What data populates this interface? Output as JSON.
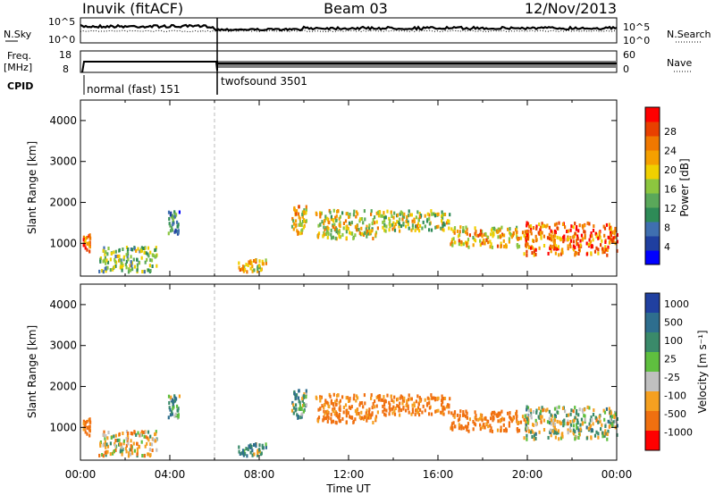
{
  "header": {
    "station": "Inuvik (fitACF)",
    "beam": "Beam 03",
    "date": "12/Nov/2013"
  },
  "status_panels": {
    "nsky_label": "N.Sky",
    "nsearch_label": "N.Search",
    "nsky_ticks": [
      "10^5",
      "10^0"
    ],
    "nsearch_ticks": [
      "10^5",
      "10^0"
    ],
    "freq_label_1": "Freq.",
    "freq_label_2": "[MHz]",
    "freq_ticks": [
      "18",
      "8"
    ],
    "nave_label": "Nave",
    "nave_ticks": [
      "60",
      "0"
    ],
    "cpid_label": "CPID",
    "modes": [
      {
        "name": "normal (fast) 151",
        "start_hour": 0,
        "end_hour": 6
      },
      {
        "name": "twofsound 3501",
        "start_hour": 6,
        "end_hour": 24
      }
    ]
  },
  "colorbars": {
    "power": {
      "label": "Power [dB]",
      "ticks": [
        "28",
        "24",
        "20",
        "16",
        "12",
        "8",
        "4"
      ],
      "colors": [
        "#0000ff",
        "#1f3fa0",
        "#3f6fb0",
        "#2e8b57",
        "#5aa85a",
        "#8cc63f",
        "#f0d000",
        "#f5a000",
        "#f07800",
        "#e84000",
        "#ff0000"
      ]
    },
    "velocity": {
      "label": "Velocity [m s⁻¹]",
      "ticks": [
        "1000",
        "500",
        "100",
        "25",
        "-25",
        "-100",
        "-500",
        "-1000"
      ],
      "colors": [
        "#2040a0",
        "#2e6e8e",
        "#3a8a6a",
        "#5fbf3f",
        "#c0c0c0",
        "#f5a020",
        "#f07010",
        "#ff0000"
      ]
    }
  },
  "chart_data": [
    {
      "type": "heatmap",
      "title": "",
      "ylabel": "Slant Range [km]",
      "xlabel": "",
      "ylim": [
        200,
        4500
      ],
      "yticks": [
        "4000",
        "3000",
        "2000",
        "1000"
      ],
      "xlim_hours": [
        0,
        24
      ],
      "quantity": "Power [dB]",
      "regions": [
        {
          "t0": 0.1,
          "t1": 0.4,
          "r0": 800,
          "r1": 1200,
          "value": 26
        },
        {
          "t0": 0.8,
          "t1": 3.4,
          "r0": 300,
          "r1": 900,
          "value": 14
        },
        {
          "t0": 3.9,
          "t1": 4.4,
          "r0": 1200,
          "r1": 1800,
          "value": 10
        },
        {
          "t0": 7.0,
          "t1": 8.3,
          "r0": 300,
          "r1": 600,
          "value": 20
        },
        {
          "t0": 9.4,
          "t1": 10.1,
          "r0": 1200,
          "r1": 1900,
          "value": 20
        },
        {
          "t0": 10.5,
          "t1": 13.2,
          "r0": 1100,
          "r1": 1800,
          "value": 18
        },
        {
          "t0": 13.2,
          "t1": 16.5,
          "r0": 1300,
          "r1": 1800,
          "value": 17
        },
        {
          "t0": 16.5,
          "t1": 20.0,
          "r0": 900,
          "r1": 1400,
          "value": 21
        },
        {
          "t0": 19.8,
          "t1": 24.0,
          "r0": 700,
          "r1": 1500,
          "value": 25
        }
      ]
    },
    {
      "type": "heatmap",
      "title": "",
      "ylabel": "Slant Range [km]",
      "xlabel": "Time UT",
      "ylim": [
        200,
        4500
      ],
      "yticks": [
        "4000",
        "3000",
        "2000",
        "1000"
      ],
      "xticks": [
        "00:00",
        "04:00",
        "08:00",
        "12:00",
        "16:00",
        "20:00",
        "00:00"
      ],
      "xlim_hours": [
        0,
        24
      ],
      "quantity": "Velocity [m s⁻¹]",
      "regions": [
        {
          "t0": 0.1,
          "t1": 0.4,
          "r0": 800,
          "r1": 1200,
          "value": -150
        },
        {
          "t0": 0.8,
          "t1": 3.4,
          "r0": 300,
          "r1": 900,
          "value": -60
        },
        {
          "t0": 3.9,
          "t1": 4.4,
          "r0": 1200,
          "r1": 1800,
          "value": 60
        },
        {
          "t0": 7.0,
          "t1": 8.3,
          "r0": 300,
          "r1": 600,
          "value": 60
        },
        {
          "t0": 9.4,
          "t1": 10.1,
          "r0": 1200,
          "r1": 1900,
          "value": 60
        },
        {
          "t0": 10.5,
          "t1": 13.2,
          "r0": 1100,
          "r1": 1800,
          "value": -150
        },
        {
          "t0": 13.2,
          "t1": 16.5,
          "r0": 1300,
          "r1": 1800,
          "value": -150
        },
        {
          "t0": 16.5,
          "t1": 20.0,
          "r0": 900,
          "r1": 1400,
          "value": -150
        },
        {
          "t0": 19.8,
          "t1": 24.0,
          "r0": 700,
          "r1": 1500,
          "value": 0
        }
      ]
    }
  ]
}
